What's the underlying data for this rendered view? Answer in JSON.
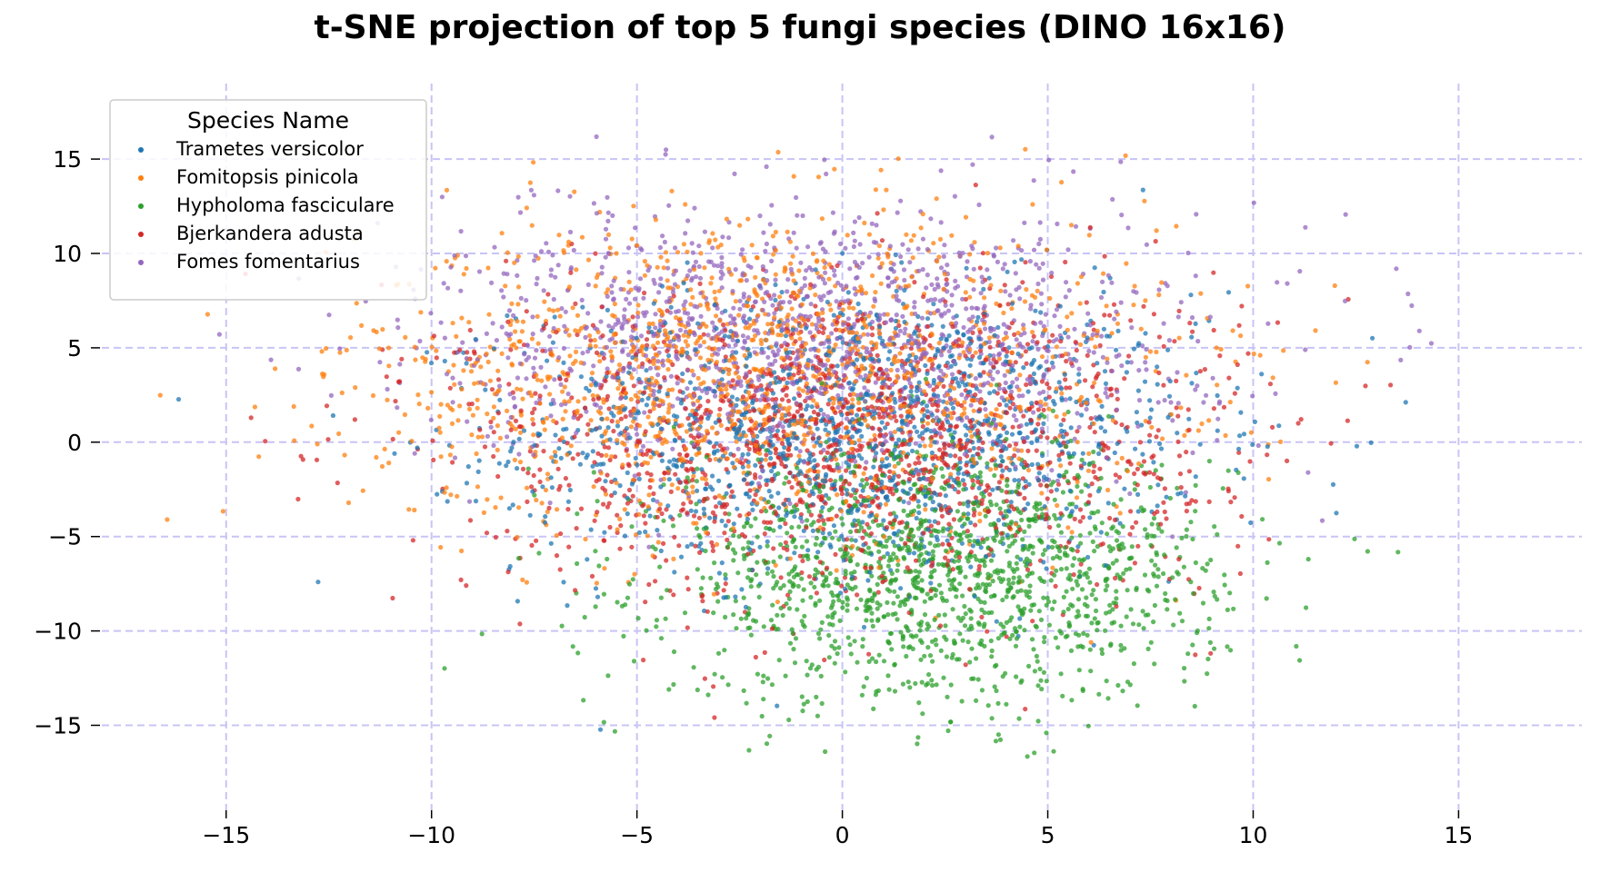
{
  "chart_data": {
    "type": "scatter",
    "title": "t-SNE projection of top 5 fungi species (DINO 16x16)",
    "xlabel": "",
    "ylabel": "",
    "xlim": [
      -19,
      18
    ],
    "ylim": [
      -19.5,
      19
    ],
    "xticks": [
      -15,
      -10,
      -5,
      0,
      5,
      10,
      15
    ],
    "yticks": [
      -15,
      -10,
      -5,
      0,
      5,
      10,
      15
    ],
    "xtick_labels": [
      "−15",
      "−10",
      "−5",
      "0",
      "5",
      "10",
      "15"
    ],
    "ytick_labels": [
      "−15",
      "−10",
      "−5",
      "0",
      "5",
      "10",
      "15"
    ],
    "grid": true,
    "grid_color": "#c8c4f5",
    "legend": {
      "title": "Species Name",
      "placement": "top-left"
    },
    "series": [
      {
        "name": "Trametes versicolor",
        "color": "#1f77b4",
        "n": 1400,
        "center": [
          0.5,
          0.5
        ],
        "spread": [
          5.5,
          5.0
        ]
      },
      {
        "name": "Fomitopsis pinicola",
        "color": "#ff7f0e",
        "n": 1500,
        "center": [
          -2.0,
          3.5
        ],
        "spread": [
          6.5,
          5.5
        ]
      },
      {
        "name": "Hypholoma fasciculare",
        "color": "#2ca02c",
        "n": 1500,
        "center": [
          2.5,
          -7.0
        ],
        "spread": [
          4.5,
          4.5
        ]
      },
      {
        "name": "Bjerkandera adusta",
        "color": "#d62728",
        "n": 1500,
        "center": [
          0.0,
          0.0
        ],
        "spread": [
          6.0,
          5.5
        ]
      },
      {
        "name": "Fomes fomentarius",
        "color": "#9467bd",
        "n": 1400,
        "center": [
          -0.5,
          5.5
        ],
        "spread": [
          6.0,
          4.5
        ]
      }
    ]
  }
}
